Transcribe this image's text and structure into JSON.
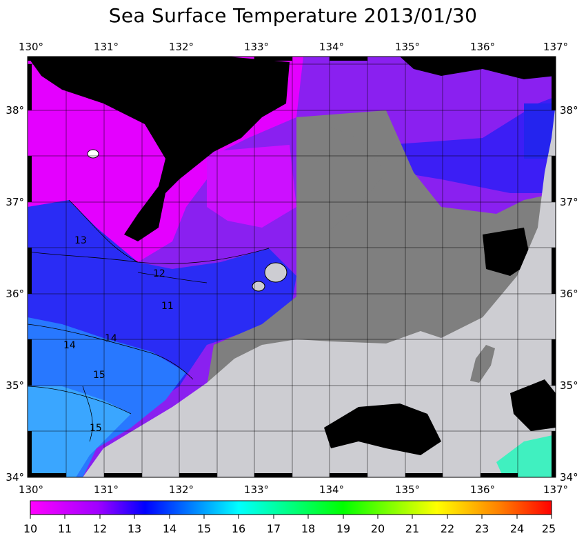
{
  "title": "Sea Surface Temperature 2013/01/30",
  "map": {
    "lon_labels": [
      "130°",
      "131°",
      "132°",
      "133°",
      "134°",
      "135°",
      "136°",
      "137°"
    ],
    "lat_labels": [
      "38°",
      "37°",
      "36°",
      "35°",
      "34°"
    ],
    "contour_labels": [
      "13",
      "12",
      "11",
      "14",
      "14",
      "15",
      "15"
    ],
    "colors": {
      "land": "#cdcdd2",
      "no_data": "#7f7f7f",
      "cloud": "#000000",
      "sst_10": "#ff00ff",
      "sst_11": "#a000ff",
      "sst_12": "#7000ff",
      "sst_13": "#2020ff",
      "sst_14": "#1a6bff",
      "sst_15": "#2aa8ff"
    }
  },
  "colorbar": {
    "ticks": [
      "10",
      "11",
      "12",
      "13",
      "14",
      "15",
      "16",
      "17",
      "18",
      "19",
      "20",
      "21",
      "22",
      "23",
      "24",
      "25"
    ],
    "range": [
      10,
      25
    ],
    "stops": [
      "#ff00ff",
      "#a000ff",
      "#0000ff",
      "#00ffff",
      "#00ff00",
      "#ffff00",
      "#ff8000",
      "#ff0000"
    ]
  }
}
